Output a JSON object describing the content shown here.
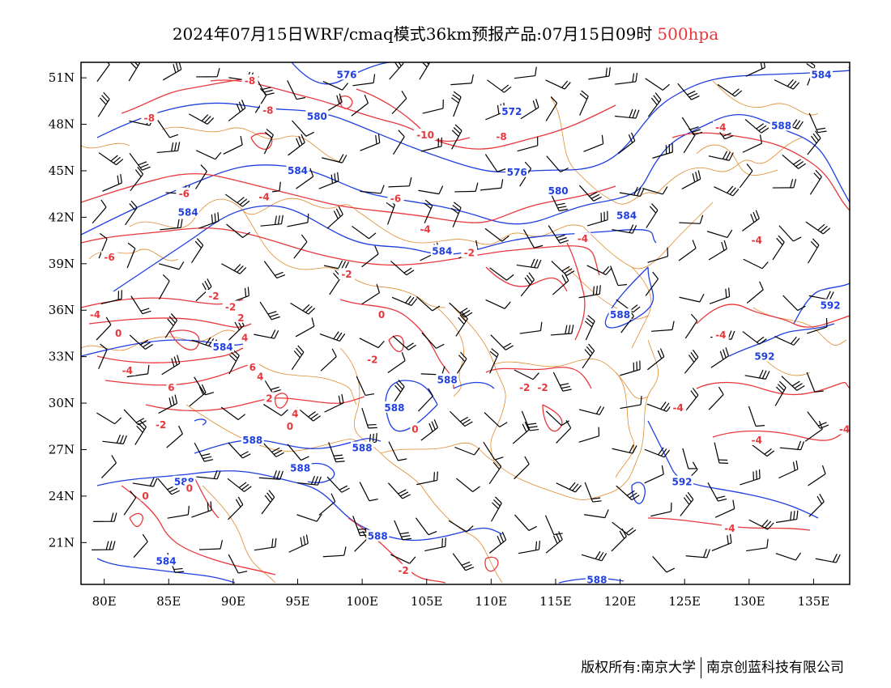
{
  "title": {
    "main": "2024年07月15日WRF/cmaq模式36km预报产品:07月15日09时",
    "level": "500hpa"
  },
  "colors": {
    "height_contour": "#1f3fe0",
    "temperature_contour": "#e8373c",
    "boundary": "#e08a2c",
    "wind_barb": "#000000"
  },
  "axes": {
    "lon_labels": [
      "80E",
      "85E",
      "90E",
      "95E",
      "100E",
      "105E",
      "110E",
      "115E",
      "120E",
      "125E",
      "130E",
      "135E"
    ],
    "lon_values": [
      80,
      85,
      90,
      95,
      100,
      105,
      110,
      115,
      120,
      125,
      130,
      135
    ],
    "lat_labels": [
      "51N",
      "48N",
      "45N",
      "42N",
      "39N",
      "36N",
      "33N",
      "30N",
      "27N",
      "24N",
      "21N"
    ],
    "lat_values": [
      51,
      48,
      45,
      42,
      39,
      36,
      33,
      30,
      27,
      24,
      21
    ],
    "lon_range": [
      78.2,
      137.8
    ],
    "lat_range": [
      18.3,
      52.0
    ]
  },
  "height_labels": [
    {
      "text": "576",
      "lon": 98.8,
      "lat": 51.2
    },
    {
      "text": "584",
      "lon": 135.6,
      "lat": 51.2
    },
    {
      "text": "580",
      "lon": 96.5,
      "lat": 48.5
    },
    {
      "text": "572",
      "lon": 111.6,
      "lat": 48.8
    },
    {
      "text": "588",
      "lon": 132.5,
      "lat": 47.9
    },
    {
      "text": "584",
      "lon": 95.0,
      "lat": 45.0
    },
    {
      "text": "576",
      "lon": 112.0,
      "lat": 44.9
    },
    {
      "text": "580",
      "lon": 115.2,
      "lat": 43.7
    },
    {
      "text": "584",
      "lon": 86.5,
      "lat": 42.3
    },
    {
      "text": "584",
      "lon": 120.5,
      "lat": 42.1
    },
    {
      "text": "584",
      "lon": 106.2,
      "lat": 39.8
    },
    {
      "text": "592",
      "lon": 136.3,
      "lat": 36.3
    },
    {
      "text": "588",
      "lon": 120.0,
      "lat": 35.7
    },
    {
      "text": "584",
      "lon": 89.2,
      "lat": 33.6
    },
    {
      "text": "592",
      "lon": 131.2,
      "lat": 33.0
    },
    {
      "text": "588",
      "lon": 106.6,
      "lat": 31.5
    },
    {
      "text": "588",
      "lon": 102.5,
      "lat": 29.7
    },
    {
      "text": "588",
      "lon": 91.5,
      "lat": 27.6
    },
    {
      "text": "588",
      "lon": 100.0,
      "lat": 27.1
    },
    {
      "text": "588",
      "lon": 95.2,
      "lat": 25.8
    },
    {
      "text": "588",
      "lon": 86.2,
      "lat": 24.9
    },
    {
      "text": "592",
      "lon": 124.8,
      "lat": 24.9
    },
    {
      "text": "588",
      "lon": 101.2,
      "lat": 21.4
    },
    {
      "text": "584",
      "lon": 84.8,
      "lat": 19.8
    },
    {
      "text": "588",
      "lon": 118.2,
      "lat": 18.6
    }
  ],
  "temperature_labels": [
    {
      "text": "-8",
      "lon": 91.3,
      "lat": 50.8
    },
    {
      "text": "-8",
      "lon": 83.5,
      "lat": 48.4
    },
    {
      "text": "-8",
      "lon": 92.7,
      "lat": 48.9
    },
    {
      "text": "-10",
      "lon": 104.9,
      "lat": 47.3
    },
    {
      "text": "-8",
      "lon": 110.8,
      "lat": 47.2
    },
    {
      "text": "-4",
      "lon": 127.8,
      "lat": 47.8
    },
    {
      "text": "-6",
      "lon": 86.2,
      "lat": 43.5
    },
    {
      "text": "-4",
      "lon": 92.4,
      "lat": 43.3
    },
    {
      "text": "-6",
      "lon": 102.6,
      "lat": 43.2
    },
    {
      "text": "-4",
      "lon": 104.9,
      "lat": 41.2
    },
    {
      "text": "-4",
      "lon": 117.1,
      "lat": 40.6
    },
    {
      "text": "-4",
      "lon": 130.6,
      "lat": 40.5
    },
    {
      "text": "-6",
      "lon": 80.4,
      "lat": 39.4
    },
    {
      "text": "-2",
      "lon": 108.3,
      "lat": 39.7
    },
    {
      "text": "-2",
      "lon": 98.8,
      "lat": 38.3
    },
    {
      "text": "-2",
      "lon": 88.5,
      "lat": 36.9
    },
    {
      "text": "-2",
      "lon": 89.8,
      "lat": 36.2
    },
    {
      "text": "-4",
      "lon": 79.3,
      "lat": 35.7
    },
    {
      "text": "2",
      "lon": 90.6,
      "lat": 35.5
    },
    {
      "text": "0",
      "lon": 81.1,
      "lat": 34.5
    },
    {
      "text": "4",
      "lon": 90.9,
      "lat": 34.2
    },
    {
      "text": "0",
      "lon": 101.5,
      "lat": 35.7
    },
    {
      "text": "-4",
      "lon": 127.8,
      "lat": 34.4
    },
    {
      "text": "6",
      "lon": 91.5,
      "lat": 32.3
    },
    {
      "text": "-4",
      "lon": 81.8,
      "lat": 32.1
    },
    {
      "text": "4",
      "lon": 92.1,
      "lat": 31.7
    },
    {
      "text": "-2",
      "lon": 100.8,
      "lat": 32.8
    },
    {
      "text": "-2",
      "lon": 112.6,
      "lat": 31.0
    },
    {
      "text": "-2",
      "lon": 114.0,
      "lat": 31.0
    },
    {
      "text": "6",
      "lon": 85.2,
      "lat": 31.0
    },
    {
      "text": "2",
      "lon": 92.8,
      "lat": 30.3
    },
    {
      "text": "-4",
      "lon": 124.5,
      "lat": 29.7
    },
    {
      "text": "4",
      "lon": 94.8,
      "lat": 29.3
    },
    {
      "text": "0",
      "lon": 94.4,
      "lat": 28.5
    },
    {
      "text": "-2",
      "lon": 84.4,
      "lat": 28.6
    },
    {
      "text": "0",
      "lon": 104.1,
      "lat": 28.3
    },
    {
      "text": "-4",
      "lon": 137.4,
      "lat": 28.3
    },
    {
      "text": "-4",
      "lon": 130.6,
      "lat": 27.6
    },
    {
      "text": "0",
      "lon": 86.6,
      "lat": 24.5
    },
    {
      "text": "0",
      "lon": 83.2,
      "lat": 24.0
    },
    {
      "text": "-4",
      "lon": 128.5,
      "lat": 21.9
    },
    {
      "text": "-2",
      "lon": 103.2,
      "lat": 19.2
    }
  ],
  "footer": {
    "left": "版权所有:南京大学",
    "right": "南京创蓝科技有限公司"
  }
}
